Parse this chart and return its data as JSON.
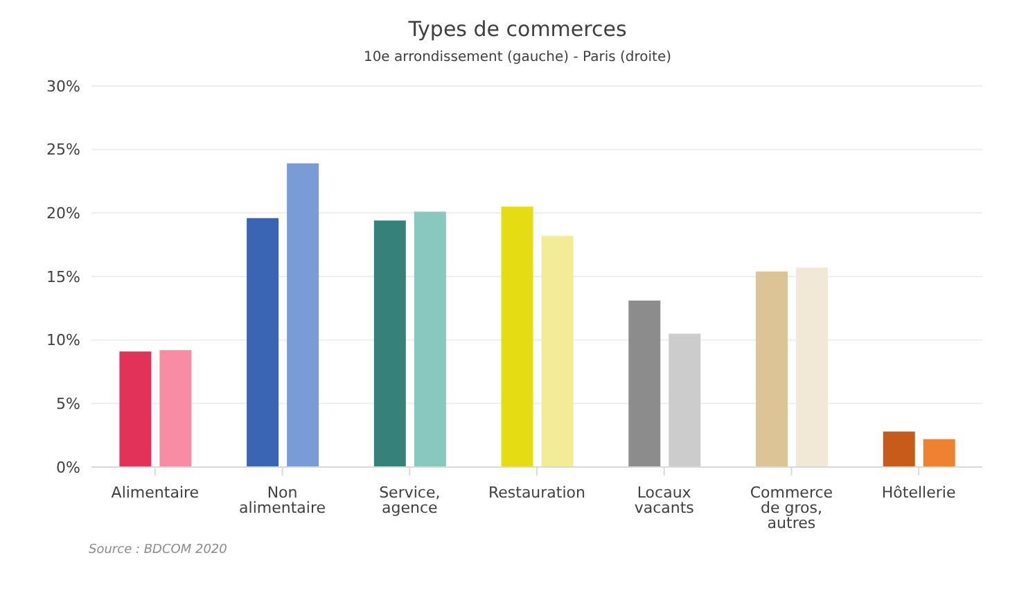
{
  "chart_data": {
    "type": "bar",
    "title": "Types de commerces",
    "subtitle": "10e arrondissement (gauche)  -  Paris (droite)",
    "categories": [
      "Alimentaire",
      "Non alimentaire",
      "Service, agence",
      "Restauration",
      "Locaux vacants",
      "Commerce de gros, autres",
      "Hôtellerie"
    ],
    "series": [
      {
        "colors": [
          "#e3325a",
          "#3a64b4",
          "#36827a",
          "#e6dc14",
          "#8c8c8c",
          "#dcc496",
          "#c85a1a"
        ],
        "values": [
          9.1,
          19.6,
          19.4,
          20.5,
          13.1,
          15.4,
          2.8
        ]
      },
      {
        "colors": [
          "#f88ca4",
          "#7a9cd6",
          "#88c8be",
          "#f2ec96",
          "#cccccc",
          "#f2e8d6",
          "#ee8232"
        ],
        "values": [
          9.2,
          23.9,
          20.1,
          18.2,
          10.5,
          15.7,
          2.2
        ]
      }
    ],
    "ylim": [
      0,
      30
    ],
    "yticks": [
      {
        "value": 0,
        "label": "0%"
      },
      {
        "value": 5,
        "label": "5%"
      },
      {
        "value": 10,
        "label": "10%"
      },
      {
        "value": 15,
        "label": "15%"
      },
      {
        "value": 20,
        "label": "20%"
      },
      {
        "value": 25,
        "label": "25%"
      },
      {
        "value": 30,
        "label": "30%"
      }
    ],
    "grid": "y",
    "legend": false,
    "annotations": [
      "Source : BDCOM 2020"
    ]
  }
}
